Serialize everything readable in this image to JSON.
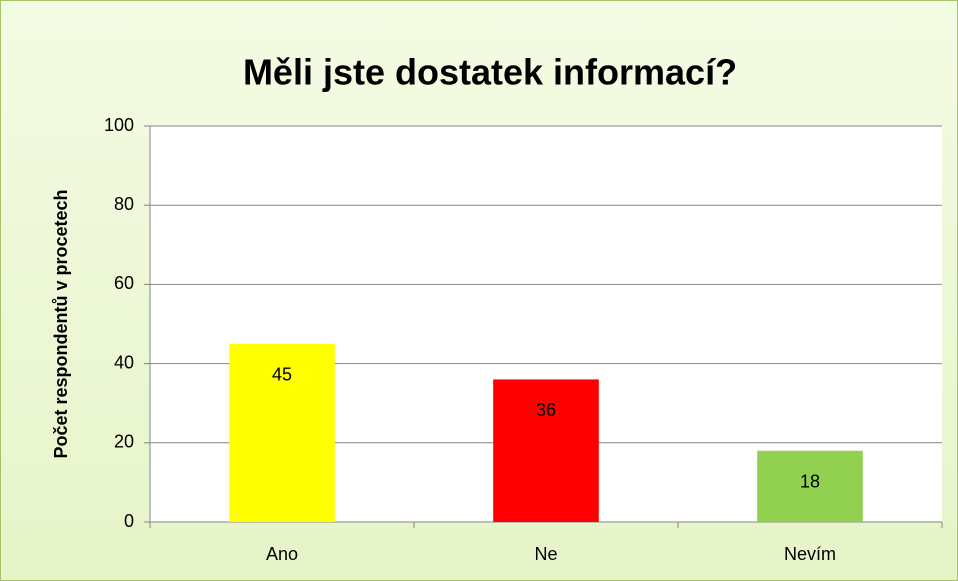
{
  "chart_data": {
    "type": "bar",
    "title": "Měli jste dostatek informací?",
    "ylabel": "Počet respondentů v procetech",
    "categories": [
      "Ano",
      "Ne",
      "Nevím"
    ],
    "values": [
      45,
      36,
      18
    ],
    "colors": [
      "#ffff00",
      "#ff0000",
      "#92d050"
    ],
    "ylim": [
      0,
      100
    ],
    "yticks": [
      0,
      20,
      40,
      60,
      80,
      100
    ],
    "grid": true
  }
}
